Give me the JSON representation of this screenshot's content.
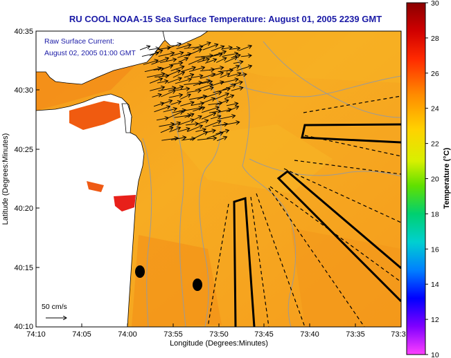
{
  "title": "RU COOL  NOAA-15  Sea Surface Temperature:  August 01, 2005 2239 GMT",
  "overlay": {
    "line1": "Raw Surface Current:",
    "line2": "August 02, 2005 01:00 GMT"
  },
  "axes": {
    "xlabel": "Longitude (Degrees:Minutes)",
    "ylabel": "Latitude (Degrees:Minutes)",
    "x_ticks": [
      "74:10",
      "74:05",
      "74:00",
      "73:55",
      "73:50",
      "73:45",
      "73:40",
      "73:35",
      "73:3"
    ],
    "y_ticks": [
      "40:35",
      "40:30",
      "40:25",
      "40:20",
      "40:15",
      "40:10"
    ]
  },
  "scale_vector": {
    "label": "50 cm/s"
  },
  "colorbar": {
    "label": "Temperature (°C)",
    "ticks": [
      "30",
      "28",
      "26",
      "24",
      "22",
      "20",
      "18",
      "16",
      "14",
      "12",
      "10"
    ],
    "min": 10,
    "max": 30
  },
  "colors": {
    "title_text": "#1a1aa6",
    "sea_warm": "#f6a41c",
    "land": "#ffffff",
    "coastline": "#000000",
    "isobath": "#9a9a9a",
    "overlay_text": "#1a1aa6"
  }
}
